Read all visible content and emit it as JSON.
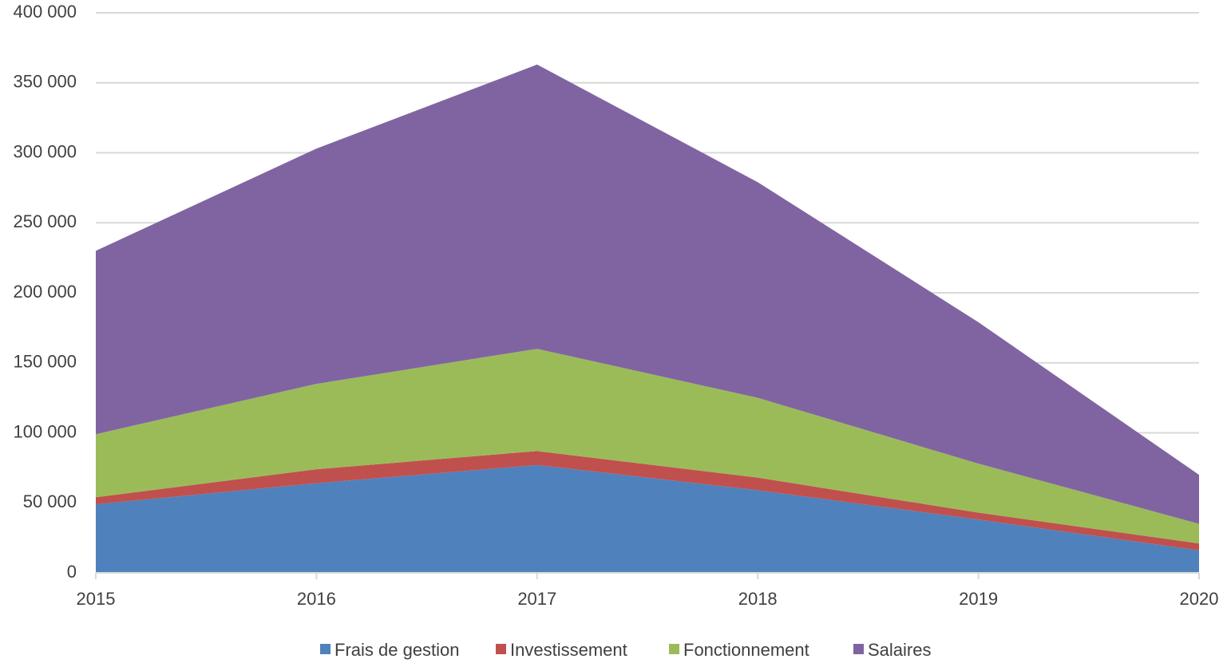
{
  "chart_data": {
    "type": "stacked_area",
    "categories": [
      "2015",
      "2016",
      "2017",
      "2018",
      "2019",
      "2020"
    ],
    "series": [
      {
        "name": "Frais de gestion",
        "color": "#4f81bd",
        "values": [
          49000,
          64000,
          77000,
          59000,
          38000,
          16000
        ]
      },
      {
        "name": "Investissement",
        "color": "#c0504d",
        "values": [
          5000,
          10000,
          10000,
          9000,
          5000,
          5000
        ]
      },
      {
        "name": "Fonctionnement",
        "color": "#9bbb59",
        "values": [
          45000,
          61000,
          73000,
          57000,
          35000,
          14000
        ]
      },
      {
        "name": "Salaires",
        "color": "#8064a2",
        "values": [
          131000,
          168000,
          203000,
          154000,
          101000,
          35000
        ]
      }
    ],
    "ylim": [
      0,
      400000
    ],
    "yticks": [
      0,
      {
        "value": 50000,
        "label": "50 000"
      },
      {
        "value": 100000,
        "label": "100 000"
      },
      {
        "value": 150000,
        "label": "150 000"
      },
      {
        "value": 200000,
        "label": "200 000"
      },
      {
        "value": 250000,
        "label": "250 000"
      },
      {
        "value": 300000,
        "label": "300 000"
      },
      {
        "value": 350000,
        "label": "350 000"
      },
      {
        "value": 400000,
        "label": "400 000"
      }
    ],
    "grid": true,
    "legend": "bottom"
  }
}
